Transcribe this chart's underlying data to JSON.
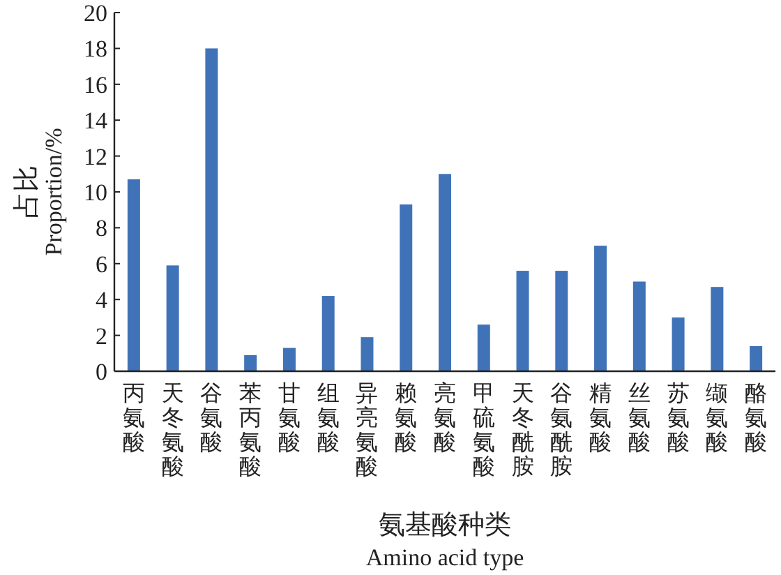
{
  "chart_data": {
    "type": "bar",
    "categories": [
      "丙氨酸",
      "天冬氨酸",
      "谷氨酸",
      "苯丙氨酸",
      "甘氨酸",
      "组氨酸",
      "异亮氨酸",
      "赖氨酸",
      "亮氨酸",
      "甲硫氨酸",
      "天冬酰胺",
      "谷氨酰胺",
      "精氨酸",
      "丝氨酸",
      "苏氨酸",
      "缬氨酸",
      "酪氨酸"
    ],
    "values": [
      10.7,
      5.9,
      18.0,
      0.9,
      1.3,
      4.2,
      1.9,
      9.3,
      11.0,
      2.6,
      5.6,
      5.6,
      7.0,
      5.0,
      3.0,
      4.7,
      1.4
    ],
    "color": "#4072b8",
    "ylim": [
      0,
      20
    ],
    "yticks": [
      0,
      2,
      4,
      6,
      8,
      10,
      12,
      14,
      16,
      18,
      20
    ],
    "xlabel": "氨基酸种类\nAmino acid type",
    "ylabel": "占比\nProportion/%"
  }
}
